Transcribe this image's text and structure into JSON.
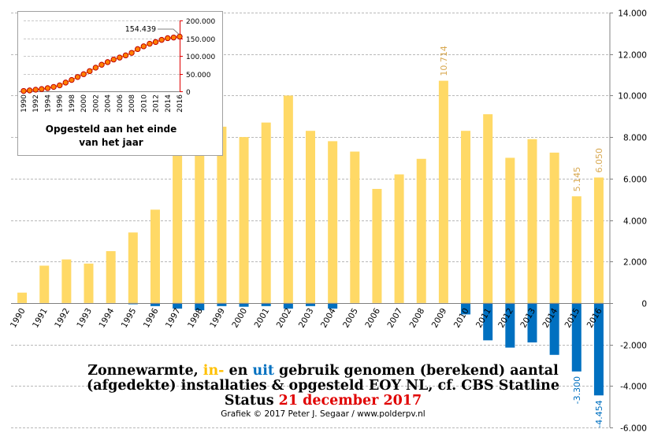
{
  "chart_data": [
    {
      "type": "bar",
      "title_parts": [
        {
          "text": "Zonnewarmte, ",
          "color": "#000000"
        },
        {
          "text": "in-",
          "color": "#FFC000"
        },
        {
          "text": " en ",
          "color": "#000000"
        },
        {
          "text": "uit",
          "color": "#0070C0"
        },
        {
          "text": " gebruik genomen (berekend) aantal",
          "color": "#000000"
        }
      ],
      "subtitle": "(afgedekte) installaties & opgesteld EOY NL, cf. CBS Statline",
      "status_prefix": "Status ",
      "status_date": "21 december 2017",
      "credit": "Grafiek © 2017 Peter J. Segaar / www.polderpv.nl",
      "categories": [
        "1990",
        "1991",
        "1992",
        "1993",
        "1994",
        "1995",
        "1996",
        "1997",
        "1998",
        "1999",
        "2000",
        "2001",
        "2002",
        "2003",
        "2004",
        "2005",
        "2006",
        "2007",
        "2008",
        "2009",
        "2010",
        "2011",
        "2012",
        "2013",
        "2014",
        "2015",
        "2016"
      ],
      "series": [
        {
          "values": [
            500,
            1800,
            2100,
            1900,
            2500,
            3400,
            4500,
            7900,
            7500,
            8500,
            8000,
            8700,
            10000,
            8300,
            7800,
            7300,
            5500,
            6200,
            6950,
            10714,
            8300,
            9100,
            7000,
            7900,
            7250,
            5145,
            6050
          ],
          "color": "#FFD966"
        },
        {
          "values": [
            0,
            0,
            0,
            0,
            0,
            -60,
            -150,
            -270,
            -350,
            -150,
            -180,
            -150,
            -270,
            -150,
            -270,
            0,
            0,
            0,
            0,
            0,
            -550,
            -1800,
            -2150,
            -1900,
            -2500,
            -3300,
            -4454
          ],
          "color": "#0070C0"
        }
      ],
      "data_labels": [
        {
          "category": "2009",
          "series": 0,
          "text": "10.714",
          "color": "#D8A850"
        },
        {
          "category": "2015",
          "series": 0,
          "text": "5.145",
          "color": "#D8A850"
        },
        {
          "category": "2016",
          "series": 0,
          "text": "6.050",
          "color": "#D8A850"
        },
        {
          "category": "2015",
          "series": 1,
          "text": "-3.300",
          "color": "#0070C0"
        },
        {
          "category": "2016",
          "series": 1,
          "text": "-4.454",
          "color": "#0070C0"
        }
      ],
      "ylim": [
        -6000,
        14000
      ],
      "yticks": [
        14000,
        12000,
        10000,
        8000,
        6000,
        4000,
        2000,
        0,
        -2000,
        -4000,
        -6000
      ],
      "ytick_labels": [
        "14.000",
        "12.000",
        "10.000",
        "8.000",
        "6.000",
        "4.000",
        "2.000",
        "0",
        "-2.000",
        "-4.000",
        "-6.000"
      ],
      "axis_side": "right",
      "grid": true
    },
    {
      "type": "line",
      "inset": true,
      "x": [
        "1990",
        "1991",
        "1992",
        "1993",
        "1994",
        "1995",
        "1996",
        "1997",
        "1998",
        "1999",
        "2000",
        "2001",
        "2002",
        "2003",
        "2004",
        "2005",
        "2006",
        "2007",
        "2008",
        "2009",
        "2010",
        "2011",
        "2012",
        "2013",
        "2014",
        "2015",
        "2016"
      ],
      "x_tick_labels": [
        "1990",
        "1992",
        "1994",
        "1996",
        "1998",
        "2000",
        "2002",
        "2004",
        "2006",
        "2008",
        "2010",
        "2012",
        "2014",
        "2016"
      ],
      "values": [
        1000,
        2500,
        4600,
        6500,
        9000,
        12400,
        16800,
        24700,
        32100,
        40500,
        48400,
        57000,
        66800,
        75000,
        82500,
        89800,
        95300,
        101500,
        108500,
        119200,
        127000,
        134300,
        139200,
        145300,
        150100,
        151900,
        154439
      ],
      "ylim": [
        0,
        200000
      ],
      "yticks": [
        0,
        50000,
        100000,
        150000,
        200000
      ],
      "ytick_labels": [
        "0",
        "50.000",
        "100.000",
        "150.000",
        "200.000"
      ],
      "axis_color": "#E00000",
      "line_color": "#FF8000",
      "marker_color": "#C00000",
      "end_label": "154.439",
      "caption": [
        "Opgesteld aan het einde",
        "van het jaar"
      ]
    }
  ]
}
